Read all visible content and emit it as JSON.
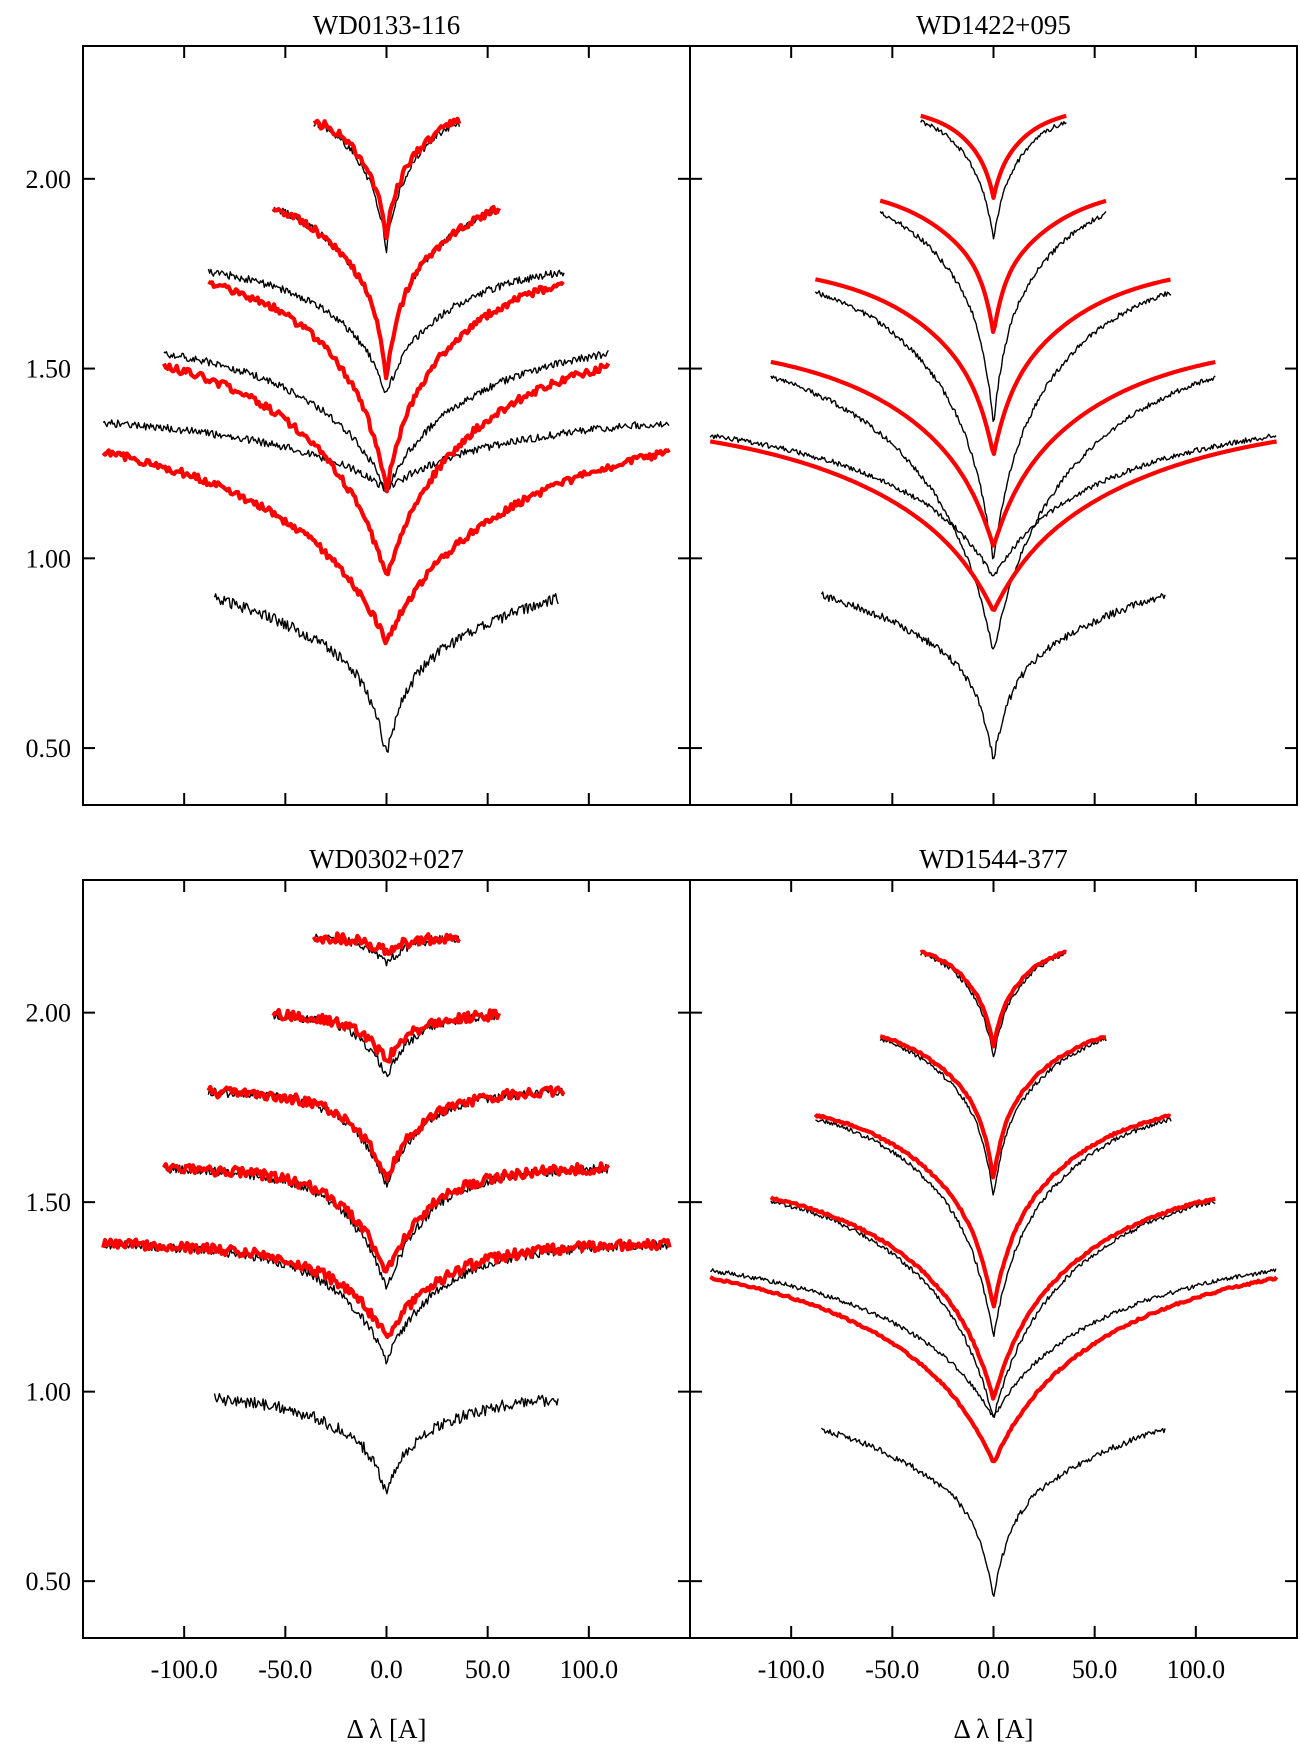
{
  "figure": {
    "xlabel": "Δ λ [A]",
    "xticks": [
      -100,
      -50,
      0,
      50,
      100
    ],
    "xtick_labels": [
      "-100.0",
      "-50.0",
      "0.0",
      "50.0",
      "100.0"
    ],
    "yticks": [
      0.5,
      1.0,
      1.5,
      2.0
    ],
    "ytick_labels": [
      "0.50",
      "1.00",
      "1.50",
      "2.00"
    ],
    "xlim": [
      -150,
      150
    ],
    "ylim": [
      0.35,
      2.35
    ]
  },
  "chart_data": [
    {
      "type": "line",
      "title": "WD0133-116",
      "xlabel": "",
      "ylabel": "",
      "xlim": [
        -150,
        150
      ],
      "ylim": [
        0.35,
        2.35
      ],
      "grid": false,
      "colors": {
        "observed": "#000000",
        "model": "#ff0000"
      },
      "series": [
        {
          "role": "observed",
          "lines": [
            {
              "half": 140,
              "cont": 1.4,
              "core": 1.18,
              "width": 26,
              "lwidth": 110,
              "noise": 0.01
            },
            {
              "half": 110,
              "cont": 1.6,
              "core": 1.18,
              "width": 18,
              "lwidth": 70,
              "noise": 0.01
            },
            {
              "half": 88,
              "cont": 1.8,
              "core": 1.43,
              "width": 11,
              "lwidth": 50,
              "noise": 0.01
            },
            {
              "half": 56,
              "cont": 2.0,
              "core": 1.47,
              "width": 6,
              "lwidth": 36,
              "noise": 0.01
            },
            {
              "half": 36,
              "cont": 2.2,
              "core": 1.81,
              "width": 5,
              "lwidth": 22,
              "noise": 0.01
            },
            {
              "half": 85,
              "cont": 1.0,
              "core": 0.48,
              "width": 10,
              "lwidth": 70,
              "noise": 0.015
            }
          ]
        },
        {
          "role": "model",
          "lines": [
            {
              "half": 140,
              "cont": 1.4,
              "core": 0.78,
              "width": 26,
              "lwidth": 110,
              "noise": 0.01
            },
            {
              "half": 110,
              "cont": 1.6,
              "core": 0.95,
              "width": 18,
              "lwidth": 70,
              "noise": 0.01
            },
            {
              "half": 88,
              "cont": 1.8,
              "core": 1.18,
              "width": 11,
              "lwidth": 50,
              "noise": 0.01
            },
            {
              "half": 56,
              "cont": 2.0,
              "core": 1.47,
              "width": 6,
              "lwidth": 36,
              "noise": 0.01
            },
            {
              "half": 36,
              "cont": 2.2,
              "core": 1.85,
              "width": 5,
              "lwidth": 22,
              "noise": 0.012
            }
          ]
        }
      ]
    },
    {
      "type": "line",
      "title": "WD1422+095",
      "xlabel": "",
      "ylabel": "",
      "xlim": [
        -150,
        150
      ],
      "ylim": [
        0.35,
        2.35
      ],
      "grid": false,
      "colors": {
        "observed": "#000000",
        "model": "#ff0000"
      },
      "series": [
        {
          "role": "observed",
          "lines": [
            {
              "half": 140,
              "cont": 1.4,
              "core": 0.95,
              "width": 24,
              "lwidth": 100,
              "noise": 0.007
            },
            {
              "half": 110,
              "cont": 1.6,
              "core": 0.75,
              "width": 16,
              "lwidth": 70,
              "noise": 0.007
            },
            {
              "half": 88,
              "cont": 1.8,
              "core": 0.99,
              "width": 10,
              "lwidth": 50,
              "noise": 0.007
            },
            {
              "half": 56,
              "cont": 2.0,
              "core": 1.35,
              "width": 6,
              "lwidth": 35,
              "noise": 0.007
            },
            {
              "half": 36,
              "cont": 2.2,
              "core": 1.84,
              "width": 5,
              "lwidth": 22,
              "noise": 0.006
            },
            {
              "half": 85,
              "cont": 1.0,
              "core": 0.47,
              "width": 9,
              "lwidth": 65,
              "noise": 0.01
            }
          ]
        },
        {
          "role": "model",
          "lines": [
            {
              "half": 140,
              "cont": 1.4,
              "core": 0.86,
              "width": 24,
              "lwidth": 100,
              "noise": 0.0
            },
            {
              "half": 110,
              "cont": 1.6,
              "core": 1.03,
              "width": 16,
              "lwidth": 70,
              "noise": 0.0
            },
            {
              "half": 88,
              "cont": 1.8,
              "core": 1.27,
              "width": 10,
              "lwidth": 50,
              "noise": 0.0
            },
            {
              "half": 56,
              "cont": 2.0,
              "core": 1.59,
              "width": 6,
              "lwidth": 35,
              "noise": 0.0
            },
            {
              "half": 36,
              "cont": 2.2,
              "core": 1.95,
              "width": 5,
              "lwidth": 22,
              "noise": 0.0
            }
          ]
        }
      ]
    },
    {
      "type": "line",
      "title": "WD0302+027",
      "xlabel": "Δ λ [A]",
      "ylabel": "",
      "xlim": [
        -150,
        150
      ],
      "ylim": [
        0.35,
        2.35
      ],
      "grid": false,
      "colors": {
        "observed": "#000000",
        "model": "#ff0000"
      },
      "series": [
        {
          "role": "observed",
          "lines": [
            {
              "half": 140,
              "cont": 1.4,
              "core": 1.08,
              "width": 12,
              "lwidth": 40,
              "noise": 0.012
            },
            {
              "half": 110,
              "cont": 1.6,
              "core": 1.27,
              "width": 10,
              "lwidth": 30,
              "noise": 0.012
            },
            {
              "half": 88,
              "cont": 1.8,
              "core": 1.54,
              "width": 8,
              "lwidth": 25,
              "noise": 0.012
            },
            {
              "half": 56,
              "cont": 2.0,
              "core": 1.83,
              "width": 7,
              "lwidth": 18,
              "noise": 0.012
            },
            {
              "half": 36,
              "cont": 2.2,
              "core": 2.13,
              "width": 6,
              "lwidth": 12,
              "noise": 0.012
            },
            {
              "half": 85,
              "cont": 1.0,
              "core": 0.72,
              "width": 6,
              "lwidth": 35,
              "noise": 0.016
            }
          ]
        },
        {
          "role": "model",
          "lines": [
            {
              "half": 140,
              "cont": 1.4,
              "core": 1.14,
              "width": 12,
              "lwidth": 40,
              "noise": 0.014
            },
            {
              "half": 110,
              "cont": 1.6,
              "core": 1.31,
              "width": 10,
              "lwidth": 30,
              "noise": 0.014
            },
            {
              "half": 88,
              "cont": 1.8,
              "core": 1.56,
              "width": 8,
              "lwidth": 25,
              "noise": 0.014
            },
            {
              "half": 56,
              "cont": 2.0,
              "core": 1.87,
              "width": 7,
              "lwidth": 18,
              "noise": 0.014
            },
            {
              "half": 36,
              "cont": 2.2,
              "core": 2.16,
              "width": 6,
              "lwidth": 12,
              "noise": 0.014
            }
          ]
        }
      ]
    },
    {
      "type": "line",
      "title": "WD1544-377",
      "xlabel": "Δ λ [A]",
      "ylabel": "",
      "xlim": [
        -150,
        150
      ],
      "ylim": [
        0.35,
        2.35
      ],
      "grid": false,
      "colors": {
        "observed": "#000000",
        "model": "#ff0000"
      },
      "series": [
        {
          "role": "observed",
          "lines": [
            {
              "half": 140,
              "cont": 1.4,
              "core": 0.93,
              "width": 24,
              "lwidth": 100,
              "noise": 0.006
            },
            {
              "half": 110,
              "cont": 1.6,
              "core": 0.93,
              "width": 16,
              "lwidth": 70,
              "noise": 0.006
            },
            {
              "half": 88,
              "cont": 1.8,
              "core": 1.14,
              "width": 10,
              "lwidth": 50,
              "noise": 0.006
            },
            {
              "half": 56,
              "cont": 2.0,
              "core": 1.51,
              "width": 6,
              "lwidth": 35,
              "noise": 0.006
            },
            {
              "half": 36,
              "cont": 2.2,
              "core": 1.88,
              "width": 5,
              "lwidth": 22,
              "noise": 0.006
            },
            {
              "half": 85,
              "cont": 1.0,
              "core": 0.46,
              "width": 9,
              "lwidth": 65,
              "noise": 0.008
            }
          ]
        },
        {
          "role": "model",
          "lines": [
            {
              "half": 140,
              "cont": 1.4,
              "core": 0.81,
              "width": 24,
              "lwidth": 100,
              "noise": 0.003
            },
            {
              "half": 110,
              "cont": 1.6,
              "core": 0.98,
              "width": 16,
              "lwidth": 70,
              "noise": 0.003
            },
            {
              "half": 88,
              "cont": 1.8,
              "core": 1.22,
              "width": 10,
              "lwidth": 50,
              "noise": 0.003
            },
            {
              "half": 56,
              "cont": 2.0,
              "core": 1.56,
              "width": 6,
              "lwidth": 35,
              "noise": 0.003
            },
            {
              "half": 36,
              "cont": 2.2,
              "core": 1.91,
              "width": 5,
              "lwidth": 22,
              "noise": 0.003
            }
          ]
        }
      ]
    }
  ]
}
